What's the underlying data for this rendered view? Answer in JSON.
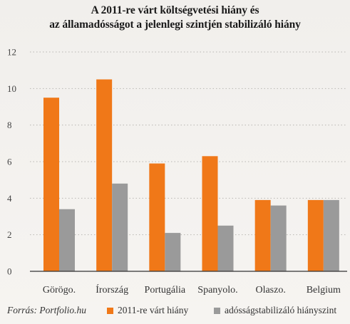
{
  "chart_data": {
    "type": "bar",
    "title": "A 2011-re várt költségvetési hiány és",
    "subtitle": "az államadósságot a jelenlegi szintjén stabilizáló hiány",
    "categories": [
      "Görögo.",
      "Írország",
      "Portugália",
      "Spanyolo.",
      "Olaszo.",
      "Belgium"
    ],
    "series": [
      {
        "name": "2011-re várt hiány",
        "color": "#f07818",
        "values": [
          9.5,
          10.5,
          5.9,
          6.3,
          3.9,
          3.9
        ]
      },
      {
        "name": "adósságstabilizáló hiányszint",
        "color": "#9a9a9a",
        "values": [
          3.4,
          4.8,
          2.1,
          2.5,
          3.6,
          3.9
        ]
      }
    ],
    "yticks": [
      "0",
      "2",
      "4",
      "6",
      "8",
      "10",
      "12"
    ],
    "ylim": [
      0,
      12
    ],
    "xlabel": "",
    "ylabel": "",
    "grid": true,
    "legend_position": "bottom"
  },
  "source": "Forrás: Portfolio.hu"
}
